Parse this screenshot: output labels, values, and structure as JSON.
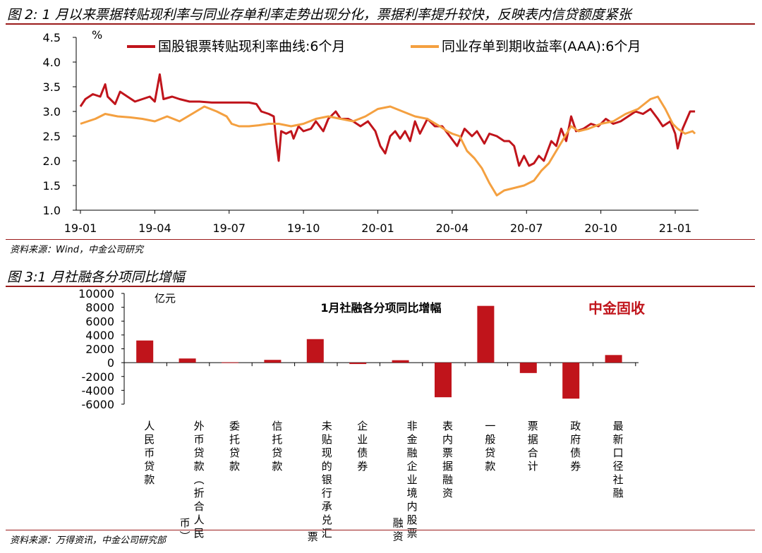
{
  "figure1": {
    "title": "图 2: 1 月以来票据转贴现利率与同业存单利率走势出现分化，票据利率提升较快，反映表内信贷额度紧张",
    "source": "资料来源：Wind，中金公司研究"
  },
  "figure2": {
    "title": "图 3:1 月社融各分项同比增幅",
    "source": "资料来源：万得资讯，中金公司研究部"
  },
  "colors": {
    "rule": "#9b1b1b",
    "bill": "#c0141b",
    "ncd": "#f4a040",
    "bar": "#c0141b",
    "watermark": "#c0141b"
  },
  "chart_data": [
    {
      "type": "line",
      "unit_label": "%",
      "ylim": [
        1.0,
        4.5
      ],
      "yticks": [
        "1.0",
        "1.5",
        "2.0",
        "2.5",
        "3.0",
        "3.5",
        "4.0",
        "4.5"
      ],
      "xticks": [
        "19-01",
        "19-04",
        "19-07",
        "19-10",
        "20-01",
        "20-04",
        "20-07",
        "20-10",
        "21-01"
      ],
      "x_range_months": [
        0,
        24.8
      ],
      "grid": false,
      "legend_position": "top",
      "series": [
        {
          "name": "国股银票转贴现利率曲线:6个月",
          "points": [
            [
              0,
              3.1
            ],
            [
              0.2,
              3.25
            ],
            [
              0.5,
              3.35
            ],
            [
              0.8,
              3.3
            ],
            [
              1.0,
              3.55
            ],
            [
              1.1,
              3.3
            ],
            [
              1.4,
              3.15
            ],
            [
              1.6,
              3.4
            ],
            [
              1.9,
              3.3
            ],
            [
              2.2,
              3.2
            ],
            [
              2.5,
              3.25
            ],
            [
              2.8,
              3.3
            ],
            [
              3.0,
              3.2
            ],
            [
              3.2,
              3.75
            ],
            [
              3.35,
              3.25
            ],
            [
              3.7,
              3.3
            ],
            [
              4.0,
              3.25
            ],
            [
              4.4,
              3.2
            ],
            [
              4.8,
              3.2
            ],
            [
              5.3,
              3.18
            ],
            [
              5.8,
              3.18
            ],
            [
              6.3,
              3.18
            ],
            [
              6.8,
              3.18
            ],
            [
              7.1,
              3.15
            ],
            [
              7.3,
              3.0
            ],
            [
              7.6,
              2.95
            ],
            [
              7.8,
              2.9
            ],
            [
              7.9,
              2.4
            ],
            [
              8.0,
              2.0
            ],
            [
              8.1,
              2.6
            ],
            [
              8.3,
              2.55
            ],
            [
              8.5,
              2.6
            ],
            [
              8.6,
              2.45
            ],
            [
              8.8,
              2.7
            ],
            [
              9.0,
              2.6
            ],
            [
              9.3,
              2.65
            ],
            [
              9.5,
              2.8
            ],
            [
              9.8,
              2.6
            ],
            [
              10.0,
              2.85
            ],
            [
              10.3,
              3.0
            ],
            [
              10.5,
              2.85
            ],
            [
              10.8,
              2.85
            ],
            [
              11.0,
              2.8
            ],
            [
              11.3,
              2.7
            ],
            [
              11.6,
              2.8
            ],
            [
              11.9,
              2.6
            ],
            [
              12.1,
              2.3
            ],
            [
              12.3,
              2.15
            ],
            [
              12.5,
              2.5
            ],
            [
              12.7,
              2.6
            ],
            [
              12.9,
              2.45
            ],
            [
              13.1,
              2.6
            ],
            [
              13.3,
              2.4
            ],
            [
              13.5,
              2.8
            ],
            [
              13.7,
              2.55
            ],
            [
              14.0,
              2.85
            ],
            [
              14.3,
              2.7
            ],
            [
              14.6,
              2.7
            ],
            [
              14.9,
              2.5
            ],
            [
              15.2,
              2.3
            ],
            [
              15.5,
              2.65
            ],
            [
              15.8,
              2.5
            ],
            [
              16.0,
              2.6
            ],
            [
              16.3,
              2.35
            ],
            [
              16.5,
              2.55
            ],
            [
              16.8,
              2.5
            ],
            [
              17.1,
              2.4
            ],
            [
              17.3,
              2.4
            ],
            [
              17.5,
              2.3
            ],
            [
              17.7,
              1.9
            ],
            [
              17.9,
              2.1
            ],
            [
              18.1,
              1.9
            ],
            [
              18.3,
              1.95
            ],
            [
              18.5,
              2.1
            ],
            [
              18.7,
              2.0
            ],
            [
              19.0,
              2.4
            ],
            [
              19.2,
              2.3
            ],
            [
              19.4,
              2.65
            ],
            [
              19.6,
              2.4
            ],
            [
              19.8,
              2.9
            ],
            [
              20.0,
              2.6
            ],
            [
              20.3,
              2.65
            ],
            [
              20.6,
              2.75
            ],
            [
              20.9,
              2.7
            ],
            [
              21.2,
              2.85
            ],
            [
              21.5,
              2.75
            ],
            [
              21.8,
              2.8
            ],
            [
              22.1,
              2.9
            ],
            [
              22.4,
              3.0
            ],
            [
              22.7,
              2.95
            ],
            [
              23.0,
              3.05
            ],
            [
              23.3,
              2.85
            ],
            [
              23.5,
              2.7
            ],
            [
              23.8,
              2.8
            ],
            [
              24.0,
              2.55
            ],
            [
              24.1,
              2.25
            ],
            [
              24.3,
              2.65
            ],
            [
              24.6,
              3.0
            ],
            [
              24.8,
              3.0
            ]
          ]
        },
        {
          "name": "同业存单到期收益率(AAA):6个月",
          "points": [
            [
              0,
              2.75
            ],
            [
              0.3,
              2.8
            ],
            [
              0.6,
              2.85
            ],
            [
              1.0,
              2.95
            ],
            [
              1.5,
              2.9
            ],
            [
              2.0,
              2.88
            ],
            [
              2.5,
              2.85
            ],
            [
              3.0,
              2.8
            ],
            [
              3.5,
              2.9
            ],
            [
              4.0,
              2.8
            ],
            [
              4.5,
              2.95
            ],
            [
              5.0,
              3.1
            ],
            [
              5.5,
              3.0
            ],
            [
              5.9,
              2.9
            ],
            [
              6.1,
              2.75
            ],
            [
              6.4,
              2.7
            ],
            [
              6.8,
              2.7
            ],
            [
              7.2,
              2.72
            ],
            [
              7.6,
              2.75
            ],
            [
              8.0,
              2.75
            ],
            [
              8.5,
              2.7
            ],
            [
              9.0,
              2.75
            ],
            [
              9.5,
              2.85
            ],
            [
              10.0,
              2.9
            ],
            [
              10.5,
              2.85
            ],
            [
              11.0,
              2.8
            ],
            [
              11.5,
              2.9
            ],
            [
              12.0,
              3.05
            ],
            [
              12.5,
              3.1
            ],
            [
              13.0,
              3.0
            ],
            [
              13.5,
              2.9
            ],
            [
              14.0,
              2.85
            ],
            [
              14.5,
              2.7
            ],
            [
              14.8,
              2.6
            ],
            [
              15.0,
              2.55
            ],
            [
              15.3,
              2.5
            ],
            [
              15.6,
              2.2
            ],
            [
              15.9,
              2.05
            ],
            [
              16.2,
              1.85
            ],
            [
              16.5,
              1.55
            ],
            [
              16.8,
              1.3
            ],
            [
              17.1,
              1.4
            ],
            [
              17.5,
              1.45
            ],
            [
              17.9,
              1.5
            ],
            [
              18.3,
              1.6
            ],
            [
              18.6,
              1.8
            ],
            [
              18.9,
              1.95
            ],
            [
              19.2,
              2.2
            ],
            [
              19.5,
              2.45
            ],
            [
              19.8,
              2.7
            ],
            [
              20.1,
              2.6
            ],
            [
              20.5,
              2.65
            ],
            [
              21.0,
              2.75
            ],
            [
              21.5,
              2.8
            ],
            [
              22.0,
              2.95
            ],
            [
              22.5,
              3.05
            ],
            [
              23.0,
              3.25
            ],
            [
              23.3,
              3.3
            ],
            [
              23.6,
              3.05
            ],
            [
              23.9,
              2.75
            ],
            [
              24.1,
              2.65
            ],
            [
              24.4,
              2.55
            ],
            [
              24.7,
              2.6
            ],
            [
              24.8,
              2.55
            ]
          ]
        }
      ]
    },
    {
      "type": "bar",
      "title": "1月社融各分项同比增幅",
      "ylabel": "亿元",
      "watermark": "中金固收",
      "ylim": [
        -6000,
        10000
      ],
      "yticks": [
        "10000",
        "8000",
        "6000",
        "4000",
        "2000",
        "0",
        "-2000",
        "-4000",
        "-6000"
      ],
      "grid": false,
      "categories": [
        "人民币贷款",
        "外币贷款（折合人民币）",
        "委托贷款",
        "信托贷款",
        "未贴现的银行承兑汇票",
        "企业债券",
        "非金融企业境内股票融资",
        "表内票据融资",
        "一般贷款",
        "票据合计",
        "政府债券",
        "最新口径社融"
      ],
      "category_label_columns": [
        [
          "人民币贷款"
        ],
        [
          "外币贷款（折合人民",
          "币）"
        ],
        [
          "委托贷款"
        ],
        [
          "信托贷款"
        ],
        [
          "未贴现的银行承兑汇",
          "票"
        ],
        [
          "企业债券"
        ],
        [
          "非金融企业境内股票",
          "融资"
        ],
        [
          "表内票据融资"
        ],
        [
          "一般贷款"
        ],
        [
          "票据合计"
        ],
        [
          "政府债券"
        ],
        [
          "最新口径社融"
        ]
      ],
      "values": [
        3200,
        600,
        50,
        400,
        3400,
        -200,
        350,
        -5000,
        8200,
        -1500,
        -5200,
        1100
      ]
    }
  ]
}
